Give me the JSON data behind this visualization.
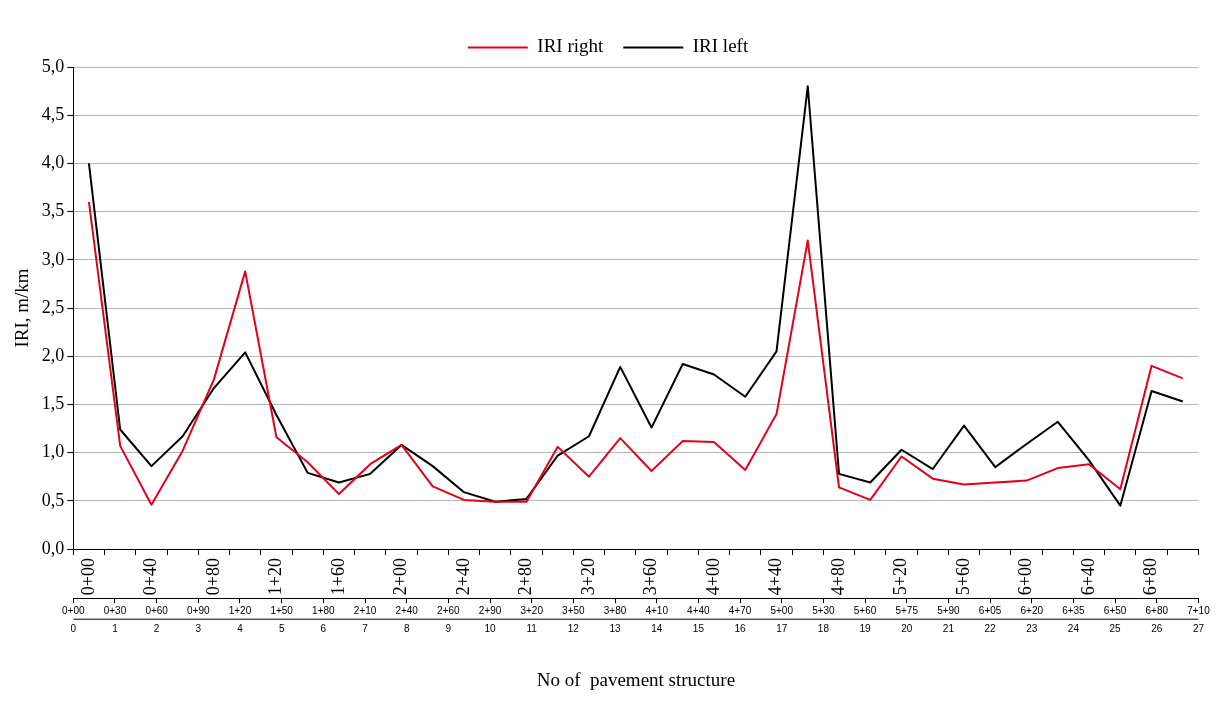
{
  "chart_data": {
    "type": "line",
    "ylabel": "IRI, m/km",
    "xlabel": "No of  pavement structure",
    "categories": [
      "0+00",
      null,
      "0+40",
      null,
      "0+80",
      null,
      "1+20",
      null,
      "1+60",
      null,
      "2+00",
      null,
      "2+40",
      null,
      "2+80",
      null,
      "3+20",
      null,
      "3+60",
      null,
      "4+00",
      null,
      "4+40",
      null,
      "4+80",
      null,
      "5+20",
      null,
      "5+60",
      null,
      "6+00",
      null,
      "6+40",
      null,
      "6+80",
      null
    ],
    "series": [
      {
        "name": "IRI right",
        "color": "#e3001b",
        "values": [
          3.6,
          1.07,
          0.46,
          1.02,
          1.76,
          2.88,
          1.16,
          0.9,
          0.57,
          0.88,
          1.08,
          0.65,
          0.51,
          0.49,
          0.49,
          1.06,
          0.75,
          1.15,
          0.81,
          1.12,
          1.11,
          0.82,
          1.4,
          3.2,
          0.64,
          0.51,
          0.96,
          0.73,
          0.67,
          0.69,
          0.71,
          0.84,
          0.88,
          0.62,
          1.9,
          1.77
        ]
      },
      {
        "name": "IRI left",
        "color": "#000000",
        "values": [
          4.0,
          1.24,
          0.86,
          1.17,
          1.67,
          2.04,
          1.39,
          0.79,
          0.69,
          0.78,
          1.08,
          0.86,
          0.59,
          0.49,
          0.52,
          0.97,
          1.17,
          1.89,
          1.26,
          1.92,
          1.81,
          1.58,
          2.05,
          4.8,
          0.78,
          0.69,
          1.03,
          0.83,
          1.28,
          0.85,
          1.09,
          1.32,
          0.92,
          0.45,
          1.64,
          1.53
        ]
      }
    ],
    "ylim": [
      0,
      5
    ],
    "yticks": [
      {
        "value": 0,
        "label": "0,0"
      },
      {
        "value": 0.5,
        "label": "0,5"
      },
      {
        "value": 1,
        "label": "1,0"
      },
      {
        "value": 1.5,
        "label": "1,5"
      },
      {
        "value": 2,
        "label": "2,0"
      },
      {
        "value": 2.5,
        "label": "2,5"
      },
      {
        "value": 3,
        "label": "3,0"
      },
      {
        "value": 3.5,
        "label": "3,5"
      },
      {
        "value": 4,
        "label": "4,0"
      },
      {
        "value": 4.5,
        "label": "4,5"
      },
      {
        "value": 5,
        "label": "5,0"
      }
    ],
    "x2lim": [
      0,
      27
    ],
    "x2ticks": [
      0,
      1,
      2,
      3,
      4,
      5,
      6,
      7,
      8,
      9,
      10,
      11,
      12,
      13,
      14,
      15,
      16,
      17,
      18,
      19,
      20,
      21,
      22,
      23,
      24,
      25,
      26,
      27
    ],
    "annotations": [
      "0+00",
      "0+30",
      "0+60",
      "0+90",
      "1+20",
      "1+50",
      "1+80",
      "2+10",
      "2+40",
      "2+60",
      "2+90",
      "3+20",
      "3+50",
      "3+80",
      "4+10",
      "4+40",
      "4+70",
      "5+00",
      "5+30",
      "5+60",
      "5+75",
      "5+90",
      "6+05",
      "6+20",
      "6+35",
      "6+50",
      "6+80",
      "7+10"
    ],
    "grid": "y",
    "legend": "top",
    "marker": "none",
    "line_style": "solid"
  }
}
